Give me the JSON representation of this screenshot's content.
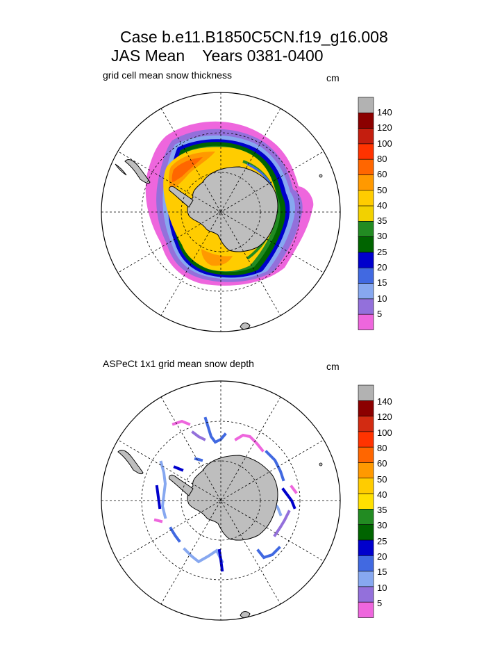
{
  "title": {
    "line1": "Case b.e11.B1850C5CN.f19_g16.008",
    "line2": "JAS Mean    Years 0381-0400"
  },
  "panels": [
    {
      "subtitle": "grid cell mean snow thickness",
      "units": "cm"
    },
    {
      "subtitle": "ASPeCt 1x1 grid mean snow depth",
      "units": "cm"
    }
  ],
  "colorbar": {
    "labels": [
      "140",
      "120",
      "100",
      "80",
      "60",
      "50",
      "40",
      "35",
      "30",
      "25",
      "20",
      "15",
      "10",
      "5"
    ],
    "colors_top": [
      "#b2b2b2",
      "#8b0000",
      "#c41e0f",
      "#ff3300",
      "#ff6600",
      "#ff9900",
      "#ffcc00",
      "#f2d100",
      "#228b22",
      "#006400",
      "#0000cc",
      "#4169e1",
      "#87a8f0",
      "#9370db",
      "#ee66dd"
    ],
    "colors_bottom": [
      "#b2b2b2",
      "#8b0000",
      "#d22b12",
      "#ff3300",
      "#ff6600",
      "#ff9900",
      "#ffcc00",
      "#ffe000",
      "#228b22",
      "#006400",
      "#0000cc",
      "#4169e1",
      "#87a8f0",
      "#9370db",
      "#ee66dd"
    ]
  },
  "colors": {
    "land": "#bebebe",
    "grid": "#000000"
  }
}
